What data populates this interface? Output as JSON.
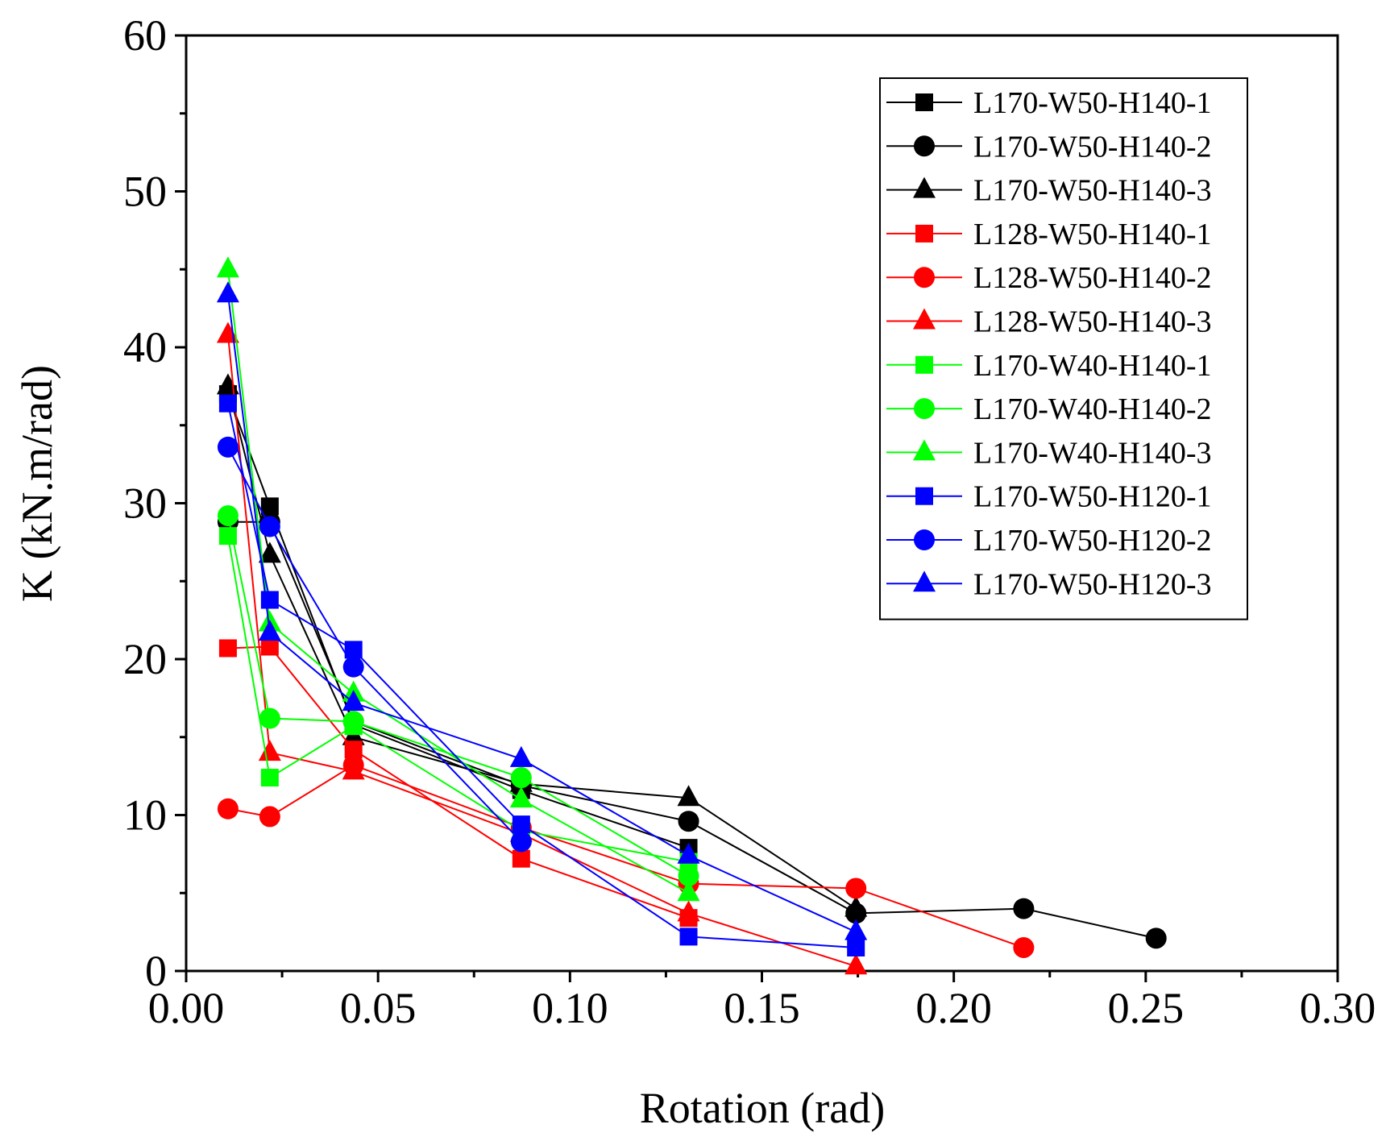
{
  "chart_data": {
    "type": "line",
    "title": "",
    "xlabel": "Rotation (rad)",
    "ylabel": "K (kN.m/rad)",
    "xlim": [
      0,
      0.3
    ],
    "ylim": [
      0,
      60
    ],
    "xticks": [
      0.0,
      0.05,
      0.1,
      0.15,
      0.2,
      0.25,
      0.3
    ],
    "yticks": [
      0,
      10,
      20,
      30,
      40,
      50,
      60
    ],
    "xtick_labels": [
      "0.00",
      "0.05",
      "0.10",
      "0.15",
      "0.20",
      "0.25",
      "0.30"
    ],
    "ytick_labels": [
      "0",
      "10",
      "20",
      "30",
      "40",
      "50",
      "60"
    ],
    "legend_position": "top-right",
    "grid": false,
    "series": [
      {
        "name": "L170-W50-H140-1",
        "color": "#000000",
        "marker": "square",
        "x": [
          0.0109,
          0.0218,
          0.0436,
          0.0873,
          0.1309
        ],
        "y": [
          37.0,
          29.8,
          15.8,
          11.6,
          7.9
        ]
      },
      {
        "name": "L170-W50-H140-2",
        "color": "#000000",
        "marker": "circle",
        "x": [
          0.0109,
          0.0218,
          0.0436,
          0.0873,
          0.1309,
          0.1745,
          0.2182,
          0.2527
        ],
        "y": [
          28.8,
          28.8,
          16.0,
          11.9,
          9.6,
          3.7,
          4.0,
          2.1
        ]
      },
      {
        "name": "L170-W50-H140-3",
        "color": "#000000",
        "marker": "triangle",
        "x": [
          0.0109,
          0.0218,
          0.0436,
          0.0873,
          0.1309,
          0.1745
        ],
        "y": [
          37.5,
          26.7,
          15.0,
          12.0,
          11.1,
          4.0
        ]
      },
      {
        "name": "L128-W50-H140-1",
        "color": "#ff0000",
        "marker": "square",
        "x": [
          0.0109,
          0.0218,
          0.0436,
          0.0873,
          0.1309
        ],
        "y": [
          20.7,
          20.8,
          14.2,
          7.2,
          3.4
        ]
      },
      {
        "name": "L128-W50-H140-2",
        "color": "#ff0000",
        "marker": "circle",
        "x": [
          0.0109,
          0.0218,
          0.0436,
          0.0873,
          0.1309,
          0.1745,
          0.2182
        ],
        "y": [
          10.4,
          9.9,
          13.2,
          9.2,
          5.6,
          5.3,
          1.5
        ]
      },
      {
        "name": "L128-W50-H140-3",
        "color": "#ff0000",
        "marker": "triangle",
        "x": [
          0.0109,
          0.0218,
          0.0436,
          0.0873,
          0.1309,
          0.1745
        ],
        "y": [
          40.8,
          14.0,
          12.8,
          8.8,
          3.7,
          0.3
        ]
      },
      {
        "name": "L170-W40-H140-1",
        "color": "#00ff00",
        "marker": "square",
        "x": [
          0.0109,
          0.0218,
          0.0436,
          0.0873,
          0.1309
        ],
        "y": [
          27.9,
          12.4,
          15.7,
          9.0,
          7.0
        ]
      },
      {
        "name": "L170-W40-H140-2",
        "color": "#00ff00",
        "marker": "circle",
        "x": [
          0.0109,
          0.0218,
          0.0436,
          0.0873,
          0.1309
        ],
        "y": [
          29.2,
          16.2,
          16.0,
          12.4,
          6.1
        ]
      },
      {
        "name": "L170-W40-H140-3",
        "color": "#00ff00",
        "marker": "triangle",
        "x": [
          0.0109,
          0.0218,
          0.0436,
          0.0873,
          0.1309
        ],
        "y": [
          45.0,
          22.3,
          17.8,
          11.0,
          5.0
        ]
      },
      {
        "name": "L170-W50-H120-1",
        "color": "#0000ff",
        "marker": "square",
        "x": [
          0.0109,
          0.0218,
          0.0436,
          0.0873,
          0.1309,
          0.1745
        ],
        "y": [
          36.4,
          23.8,
          20.6,
          9.4,
          2.2,
          1.5
        ]
      },
      {
        "name": "L170-W50-H120-2",
        "color": "#0000ff",
        "marker": "circle",
        "x": [
          0.0109,
          0.0218,
          0.0436,
          0.0873
        ],
        "y": [
          33.6,
          28.5,
          19.5,
          8.3
        ]
      },
      {
        "name": "L170-W50-H120-3",
        "color": "#0000ff",
        "marker": "triangle",
        "x": [
          0.0109,
          0.0218,
          0.0436,
          0.0873,
          0.1309,
          0.1745
        ],
        "y": [
          43.4,
          21.7,
          17.2,
          13.6,
          7.4,
          2.5
        ]
      }
    ]
  }
}
